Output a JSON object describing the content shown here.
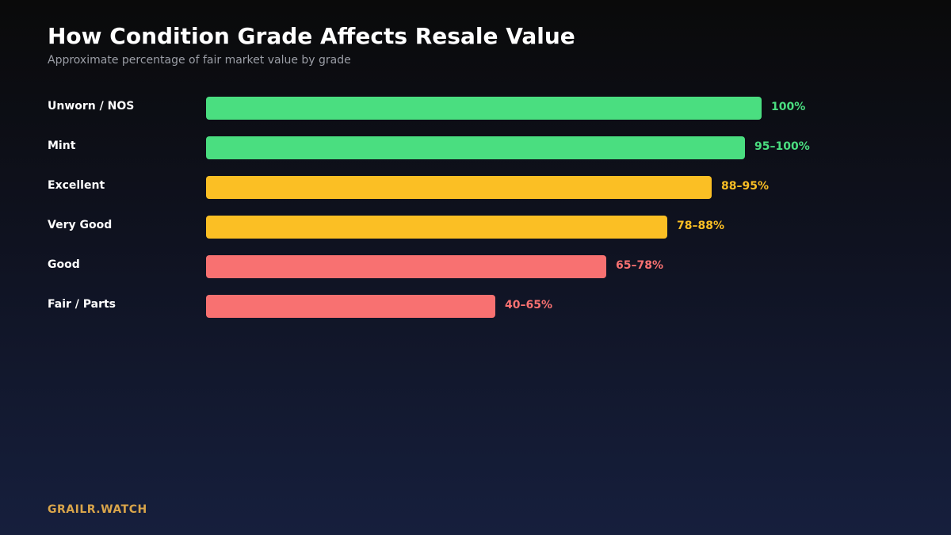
{
  "chart_data": {
    "type": "bar",
    "orientation": "horizontal",
    "title": "How Condition Grade Affects Resale Value",
    "subtitle": "Approximate percentage of fair market value by grade",
    "categories": [
      "Unworn / NOS",
      "Mint",
      "Excellent",
      "Very Good",
      "Good",
      "Fair / Parts"
    ],
    "value_labels": [
      "100%",
      "95–100%",
      "88–95%",
      "78–88%",
      "65–78%",
      "40–65%"
    ],
    "values": [
      100,
      97,
      91,
      83,
      72,
      52
    ],
    "colors": [
      "#4ade80",
      "#4ade80",
      "#fbbf24",
      "#fbbf24",
      "#f87171",
      "#f87171"
    ],
    "xlim": [
      0,
      100
    ],
    "grid": false
  },
  "footer": {
    "brand": "GRAILR.WATCH"
  }
}
